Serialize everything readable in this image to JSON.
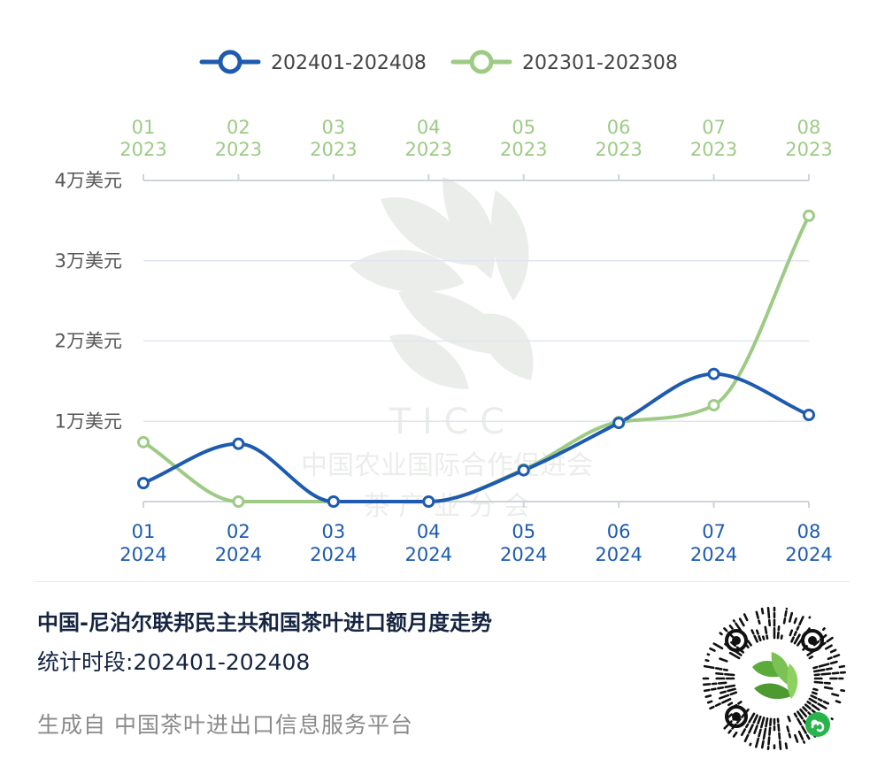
{
  "colors": {
    "series_2024": "#1e5bb0",
    "series_2023": "#9dcb86",
    "grid": "#e1e5f2",
    "axis": "#cfd3dc"
  },
  "chart_data": {
    "type": "line",
    "smooth": true,
    "bottom_x_ticks": [
      {
        "month": "01",
        "year": "2024"
      },
      {
        "month": "02",
        "year": "2024"
      },
      {
        "month": "03",
        "year": "2024"
      },
      {
        "month": "04",
        "year": "2024"
      },
      {
        "month": "05",
        "year": "2024"
      },
      {
        "month": "06",
        "year": "2024"
      },
      {
        "month": "07",
        "year": "2024"
      },
      {
        "month": "08",
        "year": "2024"
      }
    ],
    "top_x_ticks": [
      {
        "month": "01",
        "year": "2023"
      },
      {
        "month": "02",
        "year": "2023"
      },
      {
        "month": "03",
        "year": "2023"
      },
      {
        "month": "04",
        "year": "2023"
      },
      {
        "month": "05",
        "year": "2023"
      },
      {
        "month": "06",
        "year": "2023"
      },
      {
        "month": "07",
        "year": "2023"
      },
      {
        "month": "08",
        "year": "2023"
      }
    ],
    "y_ticks": [
      "1万美元",
      "2万美元",
      "3万美元",
      "4万美元"
    ],
    "y_tick_values": [
      10000,
      20000,
      30000,
      40000
    ],
    "ylim": [
      0,
      40000
    ],
    "y_unit": "美元",
    "grid": true,
    "legend_position": "top-center",
    "series": [
      {
        "name": "202401-202408",
        "color_key": "series_2024",
        "axis": "bottom",
        "values": [
          2300,
          7200,
          0,
          0,
          3900,
          9800,
          15900,
          10800
        ]
      },
      {
        "name": "202301-202308",
        "color_key": "series_2023",
        "axis": "top",
        "values": [
          7400,
          0,
          0,
          0,
          4000,
          9900,
          12000,
          35600
        ]
      }
    ]
  },
  "footer": {
    "title": "中国-尼泊尔联邦民主共和国茶叶进口额月度走势",
    "period": "统计时段:202401-202408",
    "source": "生成自 中国茶叶进出口信息服务平台"
  },
  "watermark": {
    "letters": "T I C C",
    "line1": "中国农业国际合作促进会",
    "line2": "茶  产  业  分  会"
  }
}
